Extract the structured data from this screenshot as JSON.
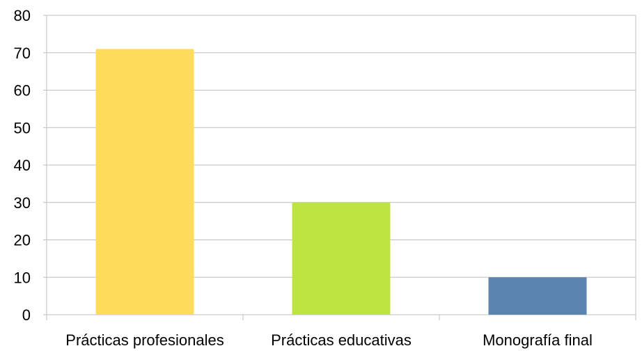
{
  "chart_data": {
    "type": "bar",
    "categories": [
      "Prácticas profesionales",
      "Prácticas educativas",
      "Monografía final"
    ],
    "values": [
      71,
      30,
      10
    ],
    "colors": [
      "#FFDC5A",
      "#BDE440",
      "#5B84AF"
    ],
    "title": "",
    "xlabel": "",
    "ylabel": "",
    "ylim": [
      0,
      80
    ],
    "yticks": [
      "0",
      "10",
      "20",
      "30",
      "40",
      "50",
      "60",
      "70",
      "80"
    ],
    "grid": true,
    "legend": "none"
  }
}
